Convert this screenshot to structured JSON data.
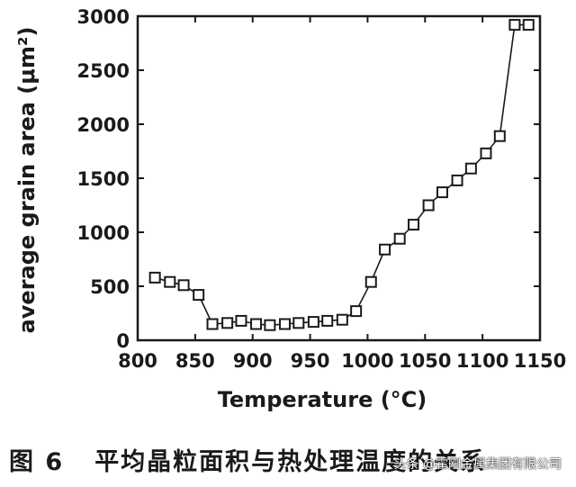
{
  "chart_data": {
    "type": "line",
    "markers": "open-square",
    "xlabel": "Temperature (°C)",
    "ylabel": "average grain area (μm²)",
    "xlim": [
      800,
      1150
    ],
    "ylim": [
      0,
      3000
    ],
    "xticks": [
      800,
      850,
      900,
      950,
      1000,
      1050,
      1100,
      1150
    ],
    "yticks": [
      0,
      500,
      1000,
      1500,
      2000,
      2500,
      3000
    ],
    "grid": false,
    "series": [
      {
        "x": [
          815,
          828,
          840,
          853,
          865,
          878,
          890,
          903,
          915,
          928,
          940,
          953,
          965,
          978,
          990,
          1003,
          1015,
          1028,
          1040,
          1053,
          1065,
          1078,
          1090,
          1103,
          1115,
          1128,
          1140
        ],
        "y": [
          580,
          540,
          510,
          420,
          150,
          160,
          180,
          150,
          140,
          150,
          160,
          170,
          180,
          190,
          270,
          540,
          840,
          940,
          1070,
          1250,
          1370,
          1480,
          1590,
          1730,
          1890,
          2920,
          2920
        ]
      }
    ]
  },
  "caption": {
    "figure_number": "图 6",
    "text": "平均晶粒面积与热处理温度的关系"
  },
  "watermark": "头条 @霍刚金属集团有限公司",
  "colors": {
    "ink": "#1a1a1a",
    "background": "#ffffff"
  }
}
